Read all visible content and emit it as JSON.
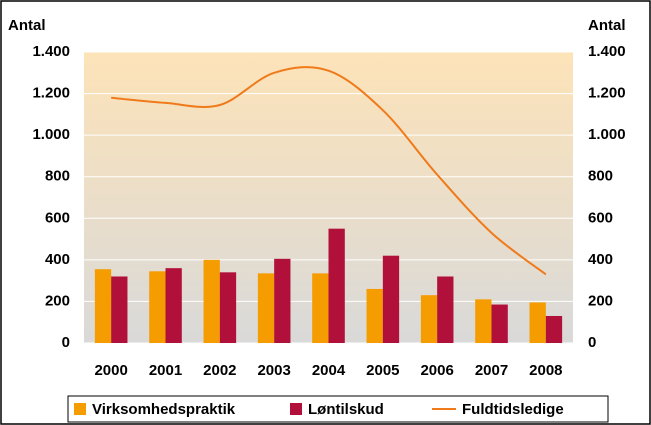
{
  "chart_data": {
    "type": "bar",
    "categories": [
      "2000",
      "2001",
      "2002",
      "2003",
      "2004",
      "2005",
      "2006",
      "2007",
      "2008"
    ],
    "y_label": "Antal",
    "y2_label": "Antal",
    "series": [
      {
        "name": "Virksomhedspraktik",
        "type": "bar",
        "color": "#f59c00",
        "values": [
          355,
          345,
          400,
          335,
          335,
          260,
          230,
          210,
          195
        ]
      },
      {
        "name": "Løntilskud",
        "type": "bar",
        "color": "#b0103a",
        "values": [
          320,
          360,
          340,
          405,
          550,
          420,
          320,
          185,
          130
        ]
      },
      {
        "name": "Fuldtidsledige",
        "type": "line",
        "axis": "y2",
        "color": "#f07a1a",
        "values": [
          1180,
          1155,
          1145,
          1300,
          1310,
          1120,
          810,
          530,
          330
        ]
      }
    ],
    "ylim": [
      0,
      1400
    ],
    "yticks": [
      0,
      200,
      400,
      600,
      800,
      {
        "value": 1000,
        "label": "1.000"
      },
      {
        "value": 1200,
        "label": "1.200"
      },
      {
        "value": 1400,
        "label": "1.400"
      }
    ],
    "y2lim": [
      0,
      1400
    ],
    "y2ticks": [
      0,
      200,
      400,
      600,
      800,
      {
        "value": 1000,
        "label": "1.000"
      },
      {
        "value": 1200,
        "label": "1.200"
      },
      {
        "value": 1400,
        "label": "1.400"
      }
    ],
    "grid": true,
    "legend": "bottom"
  }
}
